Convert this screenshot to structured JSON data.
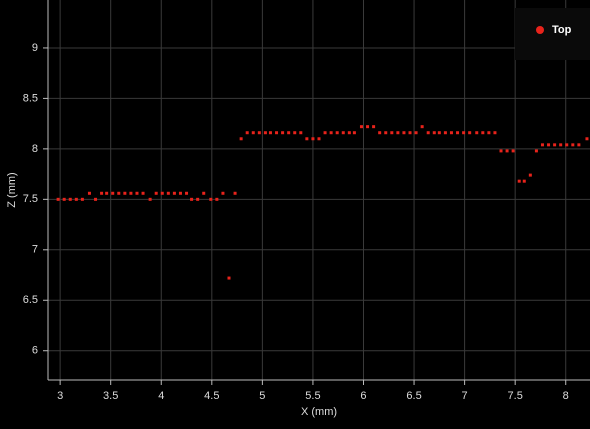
{
  "chart_data": {
    "type": "scatter",
    "x_label": "X (mm)",
    "y_label": "Z (mm)",
    "xlim": [
      2.88,
      8.24
    ],
    "ylim": [
      5.71,
      9.475
    ],
    "xticks": [
      3,
      3.5,
      4,
      4.5,
      5,
      5.5,
      6,
      6.5,
      7,
      7.5,
      8
    ],
    "yticks": [
      6,
      6.5,
      7,
      7.5,
      8,
      8.5,
      9
    ],
    "grid": true,
    "legend": "upper right",
    "series": [
      {
        "name": "Top",
        "color": "#e8231b",
        "x": [
          2.98,
          3.04,
          3.1,
          3.16,
          3.22,
          3.29,
          3.35,
          3.41,
          3.46,
          3.52,
          3.58,
          3.64,
          3.7,
          3.76,
          3.82,
          3.89,
          3.95,
          4.01,
          4.07,
          4.13,
          4.19,
          4.25,
          4.3,
          4.36,
          4.42,
          4.49,
          4.55,
          4.61,
          4.67,
          4.73,
          4.79,
          4.85,
          4.91,
          4.97,
          5.03,
          5.08,
          5.14,
          5.2,
          5.26,
          5.32,
          5.38,
          5.44,
          5.5,
          5.56,
          5.62,
          5.68,
          5.74,
          5.8,
          5.86,
          5.91,
          5.98,
          6.04,
          6.1,
          6.16,
          6.22,
          6.28,
          6.34,
          6.4,
          6.46,
          6.52,
          6.58,
          6.64,
          6.7,
          6.75,
          6.81,
          6.87,
          6.93,
          6.99,
          7.05,
          7.12,
          7.18,
          7.24,
          7.3,
          7.36,
          7.42,
          7.48,
          7.54,
          7.59,
          7.65,
          7.71,
          7.77,
          7.83,
          7.89,
          7.95,
          8.01,
          8.07,
          8.13,
          8.21
        ],
        "values": [
          7.5,
          7.5,
          7.5,
          7.5,
          7.5,
          7.56,
          7.5,
          7.56,
          7.56,
          7.56,
          7.56,
          7.56,
          7.56,
          7.56,
          7.56,
          7.5,
          7.56,
          7.56,
          7.56,
          7.56,
          7.56,
          7.56,
          7.5,
          7.5,
          7.56,
          7.5,
          7.5,
          7.56,
          6.72,
          7.56,
          8.1,
          8.16,
          8.16,
          8.16,
          8.16,
          8.16,
          8.16,
          8.16,
          8.16,
          8.16,
          8.16,
          8.1,
          8.1,
          8.1,
          8.16,
          8.16,
          8.16,
          8.16,
          8.16,
          8.16,
          8.22,
          8.22,
          8.22,
          8.16,
          8.16,
          8.16,
          8.16,
          8.16,
          8.16,
          8.16,
          8.22,
          8.16,
          8.16,
          8.16,
          8.16,
          8.16,
          8.16,
          8.16,
          8.16,
          8.16,
          8.16,
          8.16,
          8.16,
          7.98,
          7.98,
          7.98,
          7.68,
          7.68,
          7.74,
          7.98,
          8.04,
          8.04,
          8.04,
          8.04,
          8.04,
          8.04,
          8.04,
          8.1
        ]
      }
    ]
  }
}
